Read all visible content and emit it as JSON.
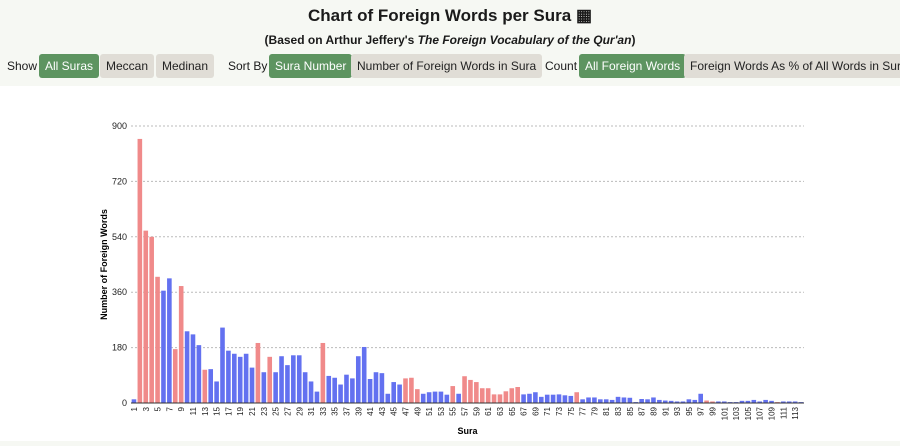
{
  "header": {
    "title": "Chart of Foreign Words per Sura",
    "title_icon": "▦",
    "subtitle_prefix": "(Based on Arthur Jeffery's ",
    "subtitle_book": "The Foreign Vocabulary of the Qur'an",
    "subtitle_suffix": ")"
  },
  "controls": {
    "show_label": "Show",
    "show_options": [
      "All Suras",
      "Meccan",
      "Medinan"
    ],
    "show_selected": "All Suras",
    "sort_label": "Sort By",
    "sort_options": [
      "Sura Number",
      "Number of Foreign Words in Sura"
    ],
    "sort_selected": "Sura Number",
    "count_label": "Count",
    "count_options": [
      "All Foreign Words",
      "Foreign Words As % of All Words in Sura"
    ],
    "count_selected": "All Foreign Words"
  },
  "colors": {
    "medinan": "#f08a8a",
    "meccan": "#6371f0",
    "active_button": "#5d9460",
    "inactive_button": "#e0ddd6"
  },
  "chart_data": {
    "type": "bar",
    "xlabel": "Sura",
    "ylabel": "Number of Foreign Words",
    "ylim": [
      0,
      900
    ],
    "yticks": [
      0,
      180,
      360,
      540,
      720,
      900
    ],
    "grid": true,
    "x": [
      1,
      2,
      3,
      4,
      5,
      6,
      7,
      8,
      9,
      10,
      11,
      12,
      13,
      14,
      15,
      16,
      17,
      18,
      19,
      20,
      21,
      22,
      23,
      24,
      25,
      26,
      27,
      28,
      29,
      30,
      31,
      32,
      33,
      34,
      35,
      36,
      37,
      38,
      39,
      40,
      41,
      42,
      43,
      44,
      45,
      46,
      47,
      48,
      49,
      50,
      51,
      52,
      53,
      54,
      55,
      56,
      57,
      58,
      59,
      60,
      61,
      62,
      63,
      64,
      65,
      66,
      67,
      68,
      69,
      70,
      71,
      72,
      73,
      74,
      75,
      76,
      77,
      78,
      79,
      80,
      81,
      82,
      83,
      84,
      85,
      86,
      87,
      88,
      89,
      90,
      91,
      92,
      93,
      94,
      95,
      96,
      97,
      98,
      99,
      100,
      101,
      102,
      103,
      104,
      105,
      106,
      107,
      108,
      109,
      110,
      111,
      112,
      113,
      114
    ],
    "x_tick_labels": [
      1,
      3,
      5,
      7,
      9,
      11,
      13,
      15,
      17,
      19,
      21,
      23,
      25,
      27,
      29,
      31,
      33,
      35,
      37,
      39,
      41,
      43,
      45,
      47,
      49,
      51,
      53,
      55,
      57,
      59,
      61,
      63,
      65,
      67,
      69,
      71,
      73,
      75,
      77,
      79,
      81,
      83,
      85,
      87,
      89,
      91,
      93,
      95,
      97,
      99,
      101,
      103,
      105,
      107,
      109,
      111,
      113
    ],
    "values": [
      12,
      858,
      560,
      540,
      410,
      365,
      405,
      175,
      380,
      233,
      223,
      188,
      108,
      110,
      70,
      245,
      170,
      160,
      150,
      160,
      115,
      195,
      100,
      150,
      100,
      152,
      123,
      155,
      155,
      100,
      70,
      37,
      195,
      88,
      82,
      60,
      92,
      80,
      152,
      182,
      78,
      100,
      97,
      30,
      68,
      60,
      80,
      82,
      45,
      30,
      35,
      37,
      37,
      27,
      55,
      30,
      87,
      75,
      68,
      48,
      48,
      28,
      28,
      38,
      48,
      52,
      28,
      30,
      35,
      20,
      27,
      27,
      28,
      25,
      23,
      35,
      12,
      18,
      18,
      12,
      12,
      10,
      20,
      18,
      17,
      3,
      13,
      12,
      18,
      10,
      8,
      7,
      5,
      5,
      12,
      10,
      30,
      8,
      5,
      5,
      5,
      3,
      3,
      7,
      7,
      10,
      5,
      10,
      7,
      3,
      5,
      5,
      5,
      3
    ],
    "medinan_suras": [
      2,
      3,
      4,
      5,
      8,
      9,
      13,
      22,
      24,
      33,
      47,
      48,
      49,
      55,
      57,
      58,
      59,
      60,
      61,
      62,
      63,
      64,
      65,
      66,
      76,
      98,
      99,
      110
    ]
  }
}
